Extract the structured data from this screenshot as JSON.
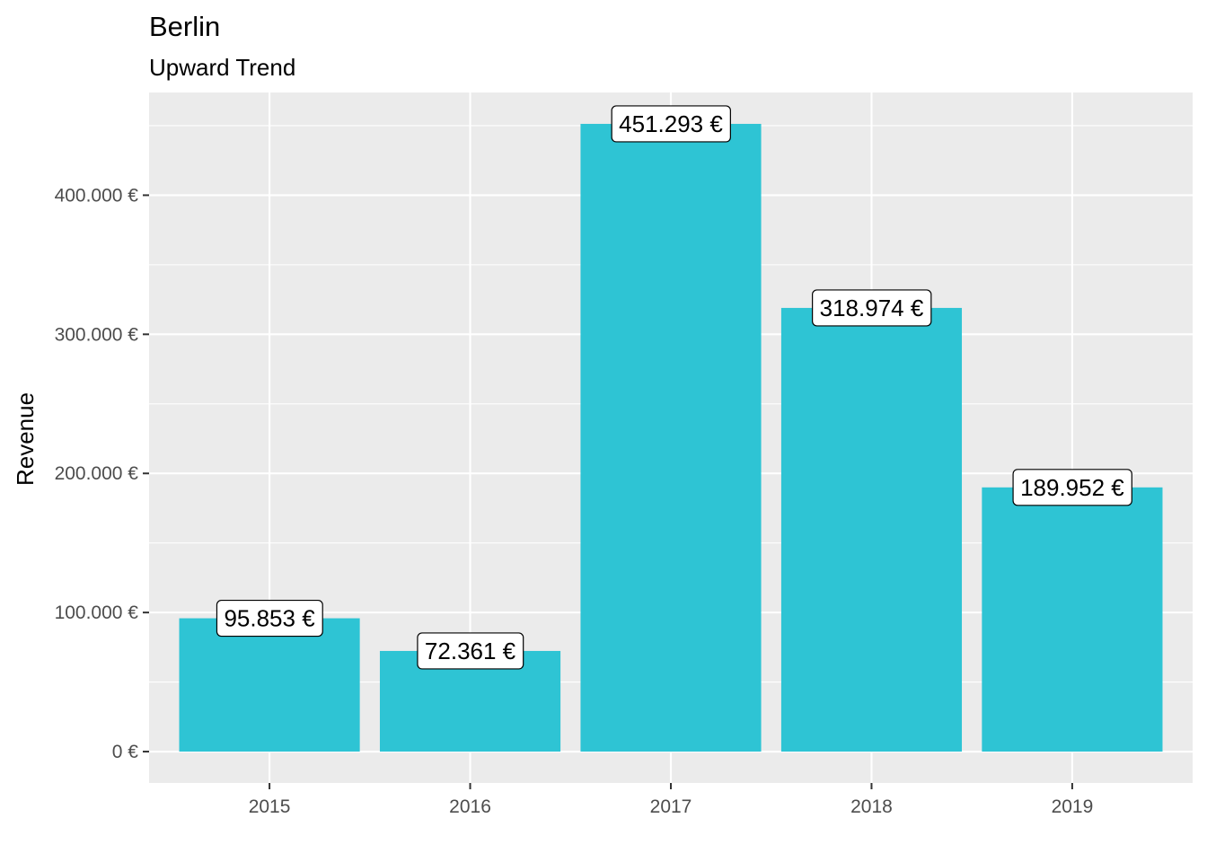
{
  "chart_data": {
    "type": "bar",
    "title": "Berlin",
    "subtitle": "Upward Trend",
    "xlabel": "",
    "ylabel": "Revenue",
    "categories": [
      "2015",
      "2016",
      "2017",
      "2018",
      "2019"
    ],
    "values": [
      95853,
      72361,
      451293,
      318974,
      189952
    ],
    "data_labels": [
      "95.853 €",
      "72.361 €",
      "451.293 €",
      "318.974 €",
      "189.952 €"
    ],
    "y_ticks": [
      0,
      100000,
      200000,
      300000,
      400000
    ],
    "y_tick_labels": [
      "0 €",
      "100.000 €",
      "200.000 €",
      "300.000 €",
      "400.000 €"
    ],
    "ylim": [
      -22565,
      473858
    ],
    "grid": true,
    "legend": "none",
    "colors": {
      "bar": "#2EC4D4",
      "panel_background": "#EBEBEB",
      "grid": "#FFFFFF"
    }
  }
}
